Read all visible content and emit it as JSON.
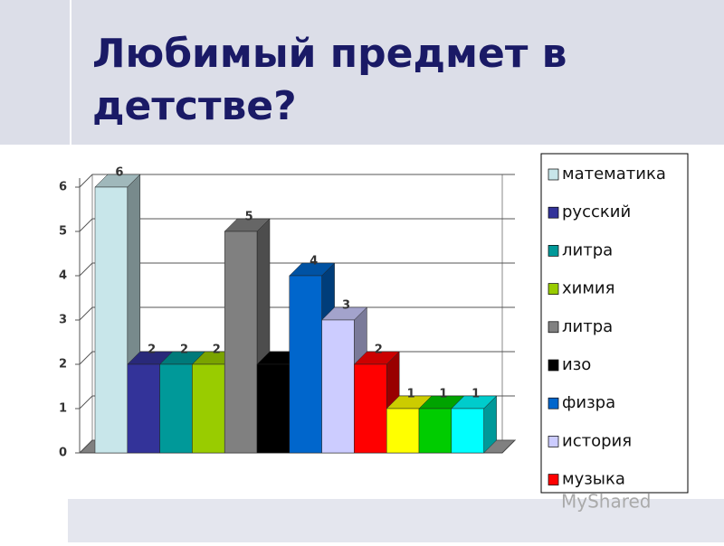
{
  "title": "Любимый предмет в детстве?",
  "watermark": "MyShared",
  "chart_data": {
    "type": "bar3d",
    "ylim": [
      0,
      6
    ],
    "yticks": [
      0,
      1,
      2,
      3,
      4,
      5,
      6
    ],
    "grid": true,
    "legend": "right",
    "series": [
      {
        "name": "математика",
        "color": "#c8e6ea",
        "values": [
          6
        ],
        "show_label": true
      },
      {
        "name": "русский",
        "color": "#333399",
        "values": [
          2
        ],
        "show_label": true
      },
      {
        "name": "литра",
        "color": "#009999",
        "values": [
          2
        ],
        "show_label": true
      },
      {
        "name": "химия",
        "color": "#99cc00",
        "values": [
          2
        ],
        "show_label": true
      },
      {
        "name": "литра",
        "color": "#808080",
        "values": [
          5
        ],
        "show_label": true
      },
      {
        "name": "изо",
        "color": "#000000",
        "values": [
          2
        ],
        "show_label": false
      },
      {
        "name": "физра",
        "color": "#0066cc",
        "values": [
          4
        ],
        "show_label": true
      },
      {
        "name": "история",
        "color": "#ccccff",
        "values": [
          3
        ],
        "show_label": true
      },
      {
        "name": "музыка",
        "color": "#ff0000",
        "values": [
          2
        ],
        "show_label": true
      },
      {
        "name": null,
        "color": "#ffff00",
        "values": [
          1
        ],
        "show_label": true
      },
      {
        "name": null,
        "color": "#00cc00",
        "values": [
          1
        ],
        "show_label": true
      },
      {
        "name": null,
        "color": "#00ffff",
        "values": [
          1
        ],
        "show_label": true
      }
    ]
  }
}
